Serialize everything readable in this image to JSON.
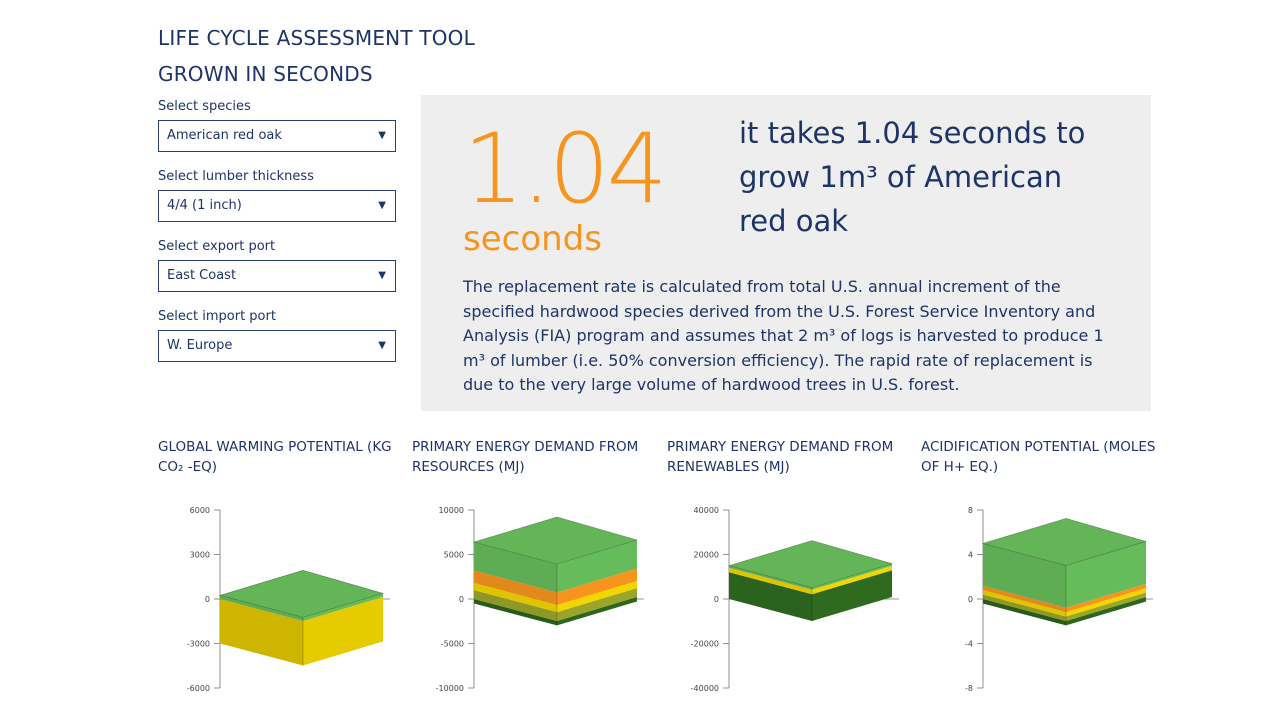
{
  "header": {
    "title": "LIFE CYCLE ASSESSMENT TOOL",
    "subtitle": "GROWN IN SECONDS"
  },
  "controls": {
    "species": {
      "label": "Select species",
      "value": "American red oak"
    },
    "thickness": {
      "label": "Select lumber thickness",
      "value": "4/4 (1 inch)"
    },
    "export_port": {
      "label": "Select export port",
      "value": "East Coast"
    },
    "import_port": {
      "label": "Select import port",
      "value": "W. Europe"
    },
    "caret_icon": "triangle-down-icon"
  },
  "info": {
    "number": "1.04",
    "unit": "seconds",
    "headline": "it takes 1.04 seconds to grow 1m³ of American red oak",
    "description": "The replacement rate is calculated from total U.S. annual increment of the specified hardwood species derived from the U.S. Forest Service Inventory and Analysis (FIA) program and assumes that 2 m³ of logs is harvested to produce 1 m³ of lumber (i.e. 50% conversion efficiency). The rapid rate of replacement is due to the very large volume of hardwood trees in U.S. forest."
  },
  "colors": {
    "navy": "#1e3468",
    "orange": "#f7941d",
    "panel_bg": "#eeeeee",
    "green_top": "#5cb85c",
    "green": "#66bb5a",
    "orange_layer": "#f7941d",
    "yellow": "#f2d600",
    "olive": "#9aa52a",
    "dark_green": "#2f6b1f"
  },
  "chart_data": [
    {
      "type": "bar",
      "title": "GLOBAL WARMING POTENTIAL (KG CO₂ -EQ)",
      "ylim": [
        -6000,
        6000
      ],
      "yticks": [
        "6000",
        "3000",
        "0",
        "-3000",
        "-6000"
      ],
      "tick_values": [
        6000,
        3000,
        0,
        -3000,
        -6000
      ],
      "stack": [
        {
          "from": 0,
          "to": -3000,
          "color": "#f2d600"
        },
        {
          "from": 0,
          "to": 250,
          "color": "#66bb5a"
        }
      ]
    },
    {
      "type": "bar",
      "title": "PRIMARY ENERGY DEMAND FROM RESOURCES (MJ)",
      "ylim": [
        -10000,
        10000
      ],
      "yticks": [
        "10000",
        "5000",
        "0",
        "-5000",
        "-10000"
      ],
      "tick_values": [
        10000,
        5000,
        0,
        -5000,
        -10000
      ],
      "stack": [
        {
          "from": 0,
          "to": -500,
          "color": "#2f6b1f"
        },
        {
          "from": 0,
          "to": 1000,
          "color": "#9aa52a"
        },
        {
          "from": 1000,
          "to": 1800,
          "color": "#f2d600"
        },
        {
          "from": 1800,
          "to": 3200,
          "color": "#f7941d"
        },
        {
          "from": 3200,
          "to": 6400,
          "color": "#66bb5a"
        }
      ]
    },
    {
      "type": "bar",
      "title": "PRIMARY ENERGY DEMAND FROM RENEWABLES (MJ)",
      "ylim": [
        -40000,
        40000
      ],
      "yticks": [
        "40000",
        "20000",
        "0",
        "-20000",
        "-40000"
      ],
      "tick_values": [
        40000,
        20000,
        0,
        -20000,
        -40000
      ],
      "stack": [
        {
          "from": 0,
          "to": 12000,
          "color": "#2f6b1f"
        },
        {
          "from": 12000,
          "to": 14000,
          "color": "#f2d600"
        },
        {
          "from": 14000,
          "to": 15000,
          "color": "#66bb5a"
        }
      ]
    },
    {
      "type": "bar",
      "title": "ACIDIFICATION POTENTIAL (MOLES OF H+ EQ.)",
      "ylim": [
        -8,
        8
      ],
      "yticks": [
        "8",
        "4",
        "0",
        "-4",
        "-8"
      ],
      "tick_values": [
        8,
        4,
        0,
        -4,
        -8
      ],
      "stack": [
        {
          "from": 0,
          "to": -0.4,
          "color": "#2f6b1f"
        },
        {
          "from": 0,
          "to": 0.4,
          "color": "#9aa52a"
        },
        {
          "from": 0.4,
          "to": 0.8,
          "color": "#f2d600"
        },
        {
          "from": 0.8,
          "to": 1.2,
          "color": "#f7941d"
        },
        {
          "from": 1.2,
          "to": 5.0,
          "color": "#66bb5a"
        }
      ]
    }
  ]
}
